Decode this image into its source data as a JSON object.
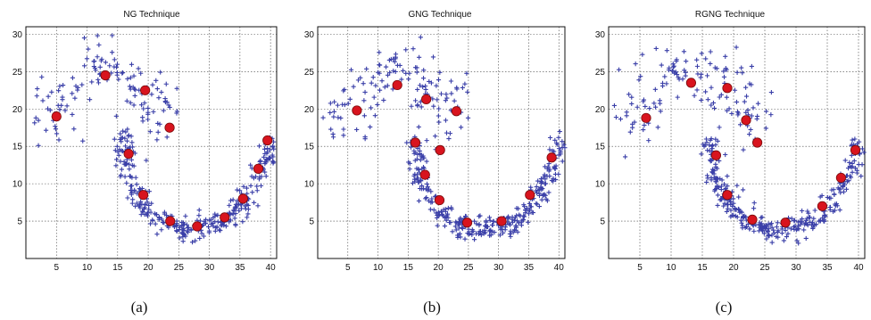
{
  "chart_data": [
    {
      "type": "scatter",
      "title": "NG Technique",
      "caption": "(a)",
      "xlim": [
        0,
        41
      ],
      "ylim": [
        0,
        31
      ],
      "xticks": [
        5,
        10,
        15,
        20,
        25,
        30,
        35,
        40
      ],
      "yticks": [
        5,
        10,
        15,
        20,
        25,
        30
      ],
      "grid": true,
      "series": [
        {
          "role": "data",
          "marker": "plus",
          "color": "#3a3fa8",
          "description_points": "dense U-shaped band plus upper-left scattered cloud"
        },
        {
          "role": "nodes",
          "marker": "circle",
          "color": "#d8141e",
          "x": [
            5.0,
            13.0,
            19.5,
            23.5,
            16.8,
            19.2,
            23.6,
            28.0,
            32.5,
            35.5,
            38.0,
            39.5
          ],
          "y": [
            19.0,
            24.5,
            22.5,
            17.5,
            14.0,
            8.5,
            5.0,
            4.3,
            5.5,
            8.0,
            12.0,
            15.8
          ]
        }
      ]
    },
    {
      "type": "scatter",
      "title": "GNG Technique",
      "caption": "(b)",
      "xlim": [
        0,
        41
      ],
      "ylim": [
        0,
        31
      ],
      "xticks": [
        5,
        10,
        15,
        20,
        25,
        30,
        35,
        40
      ],
      "yticks": [
        5,
        10,
        15,
        20,
        25,
        30
      ],
      "grid": true,
      "series": [
        {
          "role": "data",
          "marker": "plus",
          "color": "#3a3fa8"
        },
        {
          "role": "nodes",
          "marker": "circle",
          "color": "#d8141e",
          "x": [
            6.5,
            13.2,
            18.0,
            23.0,
            16.2,
            17.8,
            20.3,
            20.2,
            24.8,
            30.5,
            35.2,
            38.8
          ],
          "y": [
            19.8,
            23.2,
            21.3,
            19.7,
            15.5,
            11.2,
            14.5,
            7.8,
            4.8,
            5.0,
            8.5,
            13.5
          ]
        }
      ]
    },
    {
      "type": "scatter",
      "title": "RGNG Technique",
      "caption": "(c)",
      "xlim": [
        0,
        41
      ],
      "ylim": [
        0,
        31
      ],
      "xticks": [
        5,
        10,
        15,
        20,
        25,
        30,
        35,
        40
      ],
      "yticks": [
        5,
        10,
        15,
        20,
        25,
        30
      ],
      "grid": true,
      "series": [
        {
          "role": "data",
          "marker": "plus",
          "color": "#3a3fa8"
        },
        {
          "role": "nodes",
          "marker": "circle",
          "color": "#d8141e",
          "x": [
            6.0,
            13.2,
            19.0,
            22.0,
            23.8,
            17.2,
            19.0,
            23.0,
            28.3,
            34.2,
            37.2,
            39.5
          ],
          "y": [
            18.8,
            23.5,
            22.8,
            18.5,
            15.5,
            13.8,
            8.5,
            5.2,
            4.8,
            7.0,
            10.8,
            14.5
          ]
        }
      ]
    }
  ]
}
